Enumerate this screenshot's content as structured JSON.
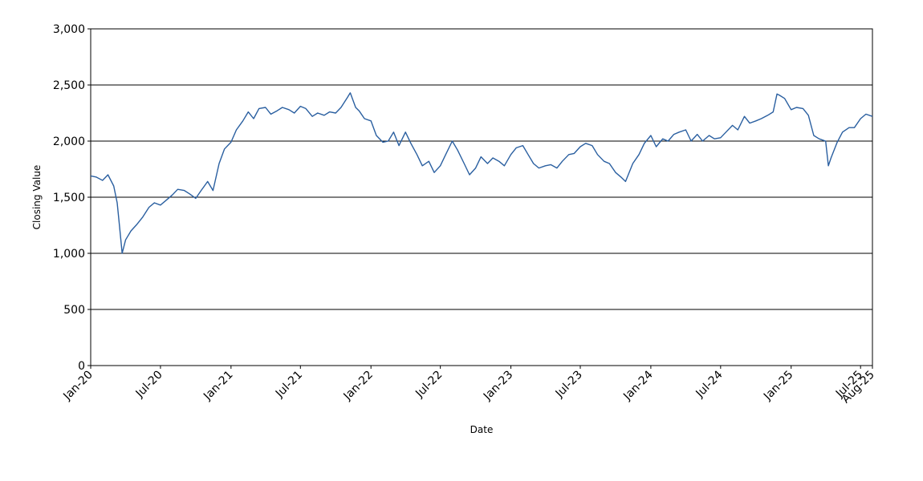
{
  "chart_data": {
    "type": "line",
    "title": "",
    "xlabel": "Date",
    "ylabel": "Closing Value",
    "ylim": [
      0,
      3000
    ],
    "xlim": [
      "2020-01-01",
      "2025-08-01"
    ],
    "y_ticks": [
      0,
      500,
      1000,
      1500,
      2000,
      2500,
      3000
    ],
    "y_tick_labels": [
      "0",
      "500",
      "1,000",
      "1,500",
      "2,000",
      "2,500",
      "3,000"
    ],
    "x_ticks": [
      {
        "date": "2020-01-01",
        "label": "Jan-20"
      },
      {
        "date": "2020-07-01",
        "label": "Jul-20"
      },
      {
        "date": "2021-01-01",
        "label": "Jan-21"
      },
      {
        "date": "2021-07-01",
        "label": "Jul-21"
      },
      {
        "date": "2022-01-01",
        "label": "Jan-22"
      },
      {
        "date": "2022-07-01",
        "label": "Jul-22"
      },
      {
        "date": "2023-01-01",
        "label": "Jan-23"
      },
      {
        "date": "2023-07-01",
        "label": "Jul-23"
      },
      {
        "date": "2024-01-01",
        "label": "Jan-24"
      },
      {
        "date": "2024-07-01",
        "label": "Jul-24"
      },
      {
        "date": "2025-01-01",
        "label": "Jan-25"
      },
      {
        "date": "2025-07-01",
        "label": "Jul-25"
      },
      {
        "date": "2025-08-01",
        "label": "Aug-25"
      }
    ],
    "grid": "horizontal",
    "line_color": "#2a5fa0",
    "series": [
      {
        "name": "",
        "x": [
          "2020-01-01",
          "2020-01-15",
          "2020-02-01",
          "2020-02-15",
          "2020-03-01",
          "2020-03-10",
          "2020-03-16",
          "2020-03-23",
          "2020-04-01",
          "2020-04-15",
          "2020-05-01",
          "2020-05-15",
          "2020-06-01",
          "2020-06-15",
          "2020-07-01",
          "2020-07-15",
          "2020-08-01",
          "2020-08-15",
          "2020-09-01",
          "2020-09-15",
          "2020-10-01",
          "2020-10-15",
          "2020-11-01",
          "2020-11-15",
          "2020-12-01",
          "2020-12-15",
          "2021-01-01",
          "2021-01-15",
          "2021-02-01",
          "2021-02-15",
          "2021-03-01",
          "2021-03-15",
          "2021-04-01",
          "2021-04-15",
          "2021-05-01",
          "2021-05-15",
          "2021-06-01",
          "2021-06-15",
          "2021-07-01",
          "2021-07-15",
          "2021-08-01",
          "2021-08-15",
          "2021-09-01",
          "2021-09-15",
          "2021-10-01",
          "2021-10-15",
          "2021-11-01",
          "2021-11-08",
          "2021-11-22",
          "2021-12-01",
          "2021-12-15",
          "2022-01-01",
          "2022-01-15",
          "2022-02-01",
          "2022-02-15",
          "2022-03-01",
          "2022-03-15",
          "2022-04-01",
          "2022-04-15",
          "2022-05-01",
          "2022-05-15",
          "2022-06-01",
          "2022-06-15",
          "2022-07-01",
          "2022-07-15",
          "2022-08-01",
          "2022-08-15",
          "2022-09-01",
          "2022-09-15",
          "2022-10-01",
          "2022-10-15",
          "2022-11-01",
          "2022-11-15",
          "2022-12-01",
          "2022-12-15",
          "2023-01-01",
          "2023-01-15",
          "2023-02-01",
          "2023-02-15",
          "2023-03-01",
          "2023-03-15",
          "2023-04-01",
          "2023-04-15",
          "2023-05-01",
          "2023-05-15",
          "2023-06-01",
          "2023-06-15",
          "2023-07-01",
          "2023-07-15",
          "2023-08-01",
          "2023-08-15",
          "2023-09-01",
          "2023-09-15",
          "2023-10-01",
          "2023-10-15",
          "2023-10-27",
          "2023-11-15",
          "2023-12-01",
          "2023-12-15",
          "2024-01-01",
          "2024-01-15",
          "2024-02-01",
          "2024-02-15",
          "2024-03-01",
          "2024-03-15",
          "2024-04-01",
          "2024-04-15",
          "2024-05-01",
          "2024-05-15",
          "2024-06-01",
          "2024-06-15",
          "2024-07-01",
          "2024-07-15",
          "2024-08-01",
          "2024-08-15",
          "2024-09-01",
          "2024-09-15",
          "2024-10-01",
          "2024-10-15",
          "2024-11-01",
          "2024-11-15",
          "2024-11-25",
          "2024-12-01",
          "2024-12-15",
          "2025-01-01",
          "2025-01-15",
          "2025-02-01",
          "2025-02-15",
          "2025-03-01",
          "2025-03-15",
          "2025-04-01",
          "2025-04-08",
          "2025-04-15",
          "2025-05-01",
          "2025-05-15",
          "2025-06-01",
          "2025-06-15",
          "2025-07-01",
          "2025-07-15",
          "2025-08-01"
        ],
        "values": [
          1690,
          1680,
          1650,
          1700,
          1600,
          1450,
          1250,
          1000,
          1120,
          1200,
          1260,
          1320,
          1410,
          1450,
          1430,
          1470,
          1520,
          1570,
          1560,
          1530,
          1490,
          1560,
          1640,
          1560,
          1800,
          1930,
          1990,
          2100,
          2180,
          2260,
          2200,
          2290,
          2300,
          2240,
          2270,
          2300,
          2280,
          2250,
          2310,
          2290,
          2220,
          2250,
          2230,
          2260,
          2250,
          2300,
          2390,
          2430,
          2300,
          2270,
          2200,
          2180,
          2050,
          1990,
          2000,
          2080,
          1960,
          2080,
          1980,
          1880,
          1780,
          1820,
          1720,
          1780,
          1880,
          2000,
          1920,
          1800,
          1700,
          1760,
          1860,
          1800,
          1850,
          1820,
          1780,
          1880,
          1940,
          1960,
          1880,
          1800,
          1760,
          1780,
          1790,
          1760,
          1820,
          1880,
          1890,
          1950,
          1980,
          1960,
          1880,
          1820,
          1800,
          1720,
          1680,
          1640,
          1800,
          1880,
          1980,
          2050,
          1950,
          2020,
          2000,
          2060,
          2080,
          2100,
          2000,
          2060,
          2000,
          2050,
          2020,
          2030,
          2080,
          2140,
          2100,
          2220,
          2160,
          2180,
          2200,
          2230,
          2260,
          2420,
          2410,
          2380,
          2280,
          2300,
          2290,
          2230,
          2050,
          2020,
          2000,
          1780,
          1850,
          1990,
          2080,
          2120,
          2120,
          2200,
          2240,
          2220
        ]
      }
    ]
  }
}
